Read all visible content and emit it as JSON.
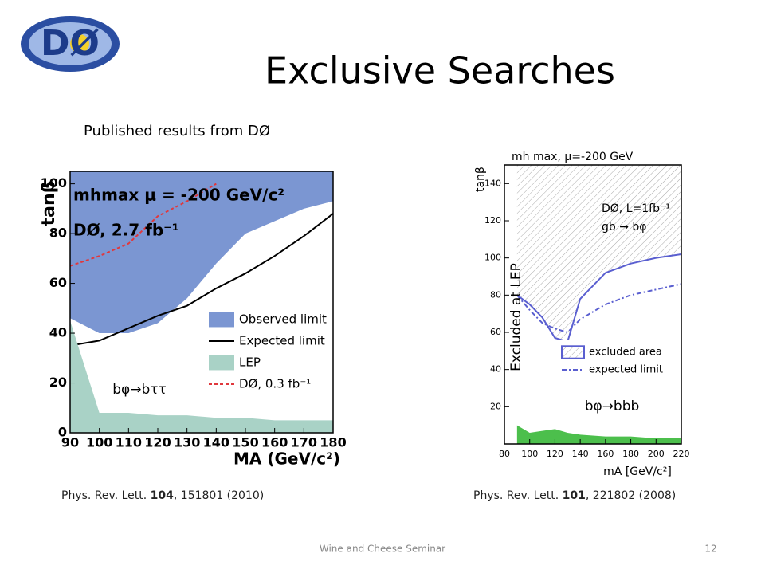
{
  "logo": "DØ",
  "title": "Exclusive Searches",
  "subtitle": "Published results from DØ",
  "footer": "Wine and Cheese Seminar",
  "page_number": "12",
  "chart_data": [
    {
      "type": "line",
      "annotations": [
        "mhmax μ = -200 GeV/c²",
        "DØ, 2.7 fb⁻¹",
        "bφ→bττ"
      ],
      "x_label": "MA (GeV/c²)",
      "y_label": "tanβ",
      "citation": [
        "Phys. Rev. Lett. ",
        "104",
        ", 151801 (2010)"
      ],
      "x": [
        90,
        100,
        110,
        120,
        130,
        140,
        150,
        160,
        170,
        180
      ],
      "xlim": [
        90,
        180
      ],
      "ylim": [
        0,
        105
      ],
      "xticks": [
        90,
        100,
        110,
        120,
        130,
        140,
        150,
        160,
        170,
        180
      ],
      "yticks": [
        0,
        20,
        40,
        60,
        80,
        100
      ],
      "series": [
        {
          "name": "Observed limit",
          "color": "#7b96d2",
          "style": "fill-above",
          "values": [
            46,
            40,
            40,
            44,
            54,
            68,
            80,
            85,
            90,
            93
          ]
        },
        {
          "name": "Expected limit",
          "color": "#000000",
          "style": "line",
          "values": [
            35,
            37,
            42,
            47,
            51,
            58,
            64,
            71,
            79,
            88
          ]
        },
        {
          "name": "LEP",
          "color": "#a9d2c6",
          "style": "fill-below",
          "values": [
            45,
            8,
            8,
            7,
            7,
            6,
            6,
            5,
            5,
            5
          ]
        },
        {
          "name": "DØ, 0.3 fb⁻¹",
          "color": "#e0383d",
          "style": "dashed",
          "values": [
            67,
            71,
            76,
            87,
            93,
            100,
            null,
            null,
            null,
            null
          ]
        }
      ]
    },
    {
      "type": "line",
      "annotations": [
        "mh max, μ=-200 GeV",
        "DØ, L=1fb⁻¹",
        "gb → bφ",
        "Excluded at LEP",
        "bφ→bbb"
      ],
      "x_label": "mA [GeV/c²]",
      "y_label": "tanβ",
      "citation": [
        "Phys. Rev. Lett. ",
        "101",
        ", 221802 (2008)"
      ],
      "x": [
        90,
        100,
        110,
        120,
        130,
        140,
        160,
        180,
        200,
        220
      ],
      "xlim": [
        80,
        220
      ],
      "ylim": [
        0,
        150
      ],
      "xticks": [
        80,
        100,
        120,
        140,
        160,
        180,
        200,
        220
      ],
      "yticks": [
        20,
        40,
        60,
        80,
        100,
        120,
        140
      ],
      "series": [
        {
          "name": "excluded area",
          "color": "#5a5fd0",
          "style": "hatch-above",
          "values": [
            80,
            75,
            68,
            57,
            55,
            78,
            92,
            97,
            100,
            102
          ]
        },
        {
          "name": "expected limit",
          "color": "#5a5fd0",
          "style": "dashdot",
          "values": [
            80,
            72,
            65,
            62,
            60,
            67,
            75,
            80,
            83,
            86
          ]
        },
        {
          "color": "#4cbf4c",
          "style": "fill-below",
          "values": [
            10,
            6,
            7,
            8,
            6,
            5,
            4,
            4,
            3,
            3
          ]
        }
      ]
    }
  ]
}
